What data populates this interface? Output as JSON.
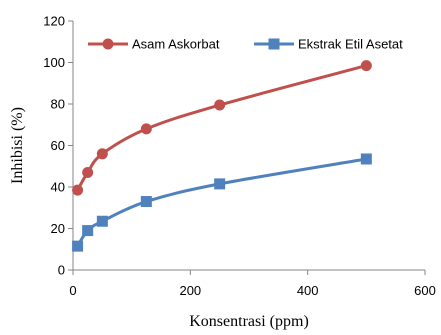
{
  "chart_data": {
    "type": "line",
    "title": "",
    "xlabel": "Konsentrasi (ppm)",
    "ylabel": "Inhibisi (%)",
    "xlim": [
      0,
      600
    ],
    "ylim": [
      0,
      120
    ],
    "xticks": [
      0,
      200,
      400,
      600
    ],
    "yticks": [
      0,
      20,
      40,
      60,
      80,
      100,
      120
    ],
    "grid": false,
    "legend_position": "top",
    "series": [
      {
        "name": "Asam Askorbat",
        "color": "#c0504d",
        "marker": "circle",
        "x": [
          7.8,
          25,
          50,
          125,
          250,
          500
        ],
        "y": [
          38.5,
          47,
          56,
          68,
          79.5,
          98.5
        ]
      },
      {
        "name": "Ekstrak Etil Asetat",
        "color": "#4f81bd",
        "marker": "square",
        "x": [
          7.8,
          25,
          50,
          125,
          250,
          500
        ],
        "y": [
          11.5,
          19,
          23.5,
          33,
          41.5,
          53.5
        ]
      }
    ]
  }
}
